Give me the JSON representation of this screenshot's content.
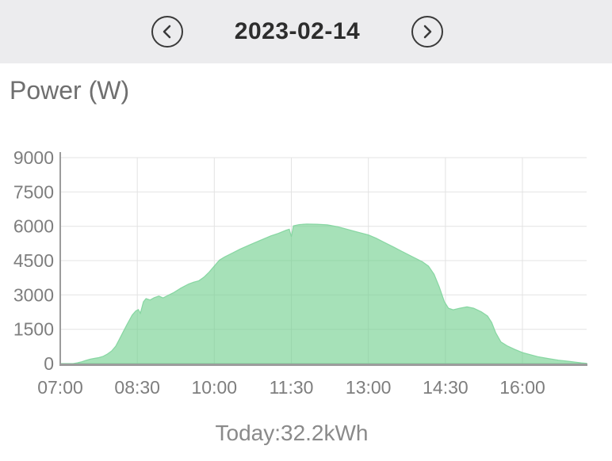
{
  "header": {
    "date": "2023-02-14",
    "prev_icon": "chevron-left",
    "next_icon": "chevron-right"
  },
  "chart": {
    "title": "Power (W)",
    "today_total": "Today:32.2kWh"
  },
  "colors": {
    "header_bg": "#ececee",
    "date_text": "#2d2d2d",
    "title_text": "#6f6f6f",
    "axis_label": "#7e7e7e",
    "grid_line": "#e3e3e3",
    "axis_line": "#9c9c9c",
    "area_fill": "#6fcf8c",
    "area_stroke": "#7fd49c",
    "today_text": "#8a8a8a",
    "icon_stroke": "#3a3a3a"
  },
  "chart_data": {
    "type": "area",
    "title": "Power (W)",
    "x_unit": "hour_of_day",
    "xlim": [
      7.0,
      17.25
    ],
    "ylim": [
      0,
      9000
    ],
    "grid": true,
    "legend": false,
    "total_label": "Today:32.2kWh",
    "total_kwh": 32.2,
    "y_ticks": [
      {
        "value": 0,
        "label": "0"
      },
      {
        "value": 1500,
        "label": "1500"
      },
      {
        "value": 3000,
        "label": "3000"
      },
      {
        "value": 4500,
        "label": "4500"
      },
      {
        "value": 6000,
        "label": "6000"
      },
      {
        "value": 7500,
        "label": "7500"
      },
      {
        "value": 9000,
        "label": "9000"
      }
    ],
    "x_ticks": [
      {
        "value": 7.0,
        "label": "07:00"
      },
      {
        "value": 8.5,
        "label": "08:30"
      },
      {
        "value": 10.0,
        "label": "10:00"
      },
      {
        "value": 11.5,
        "label": "11:30"
      },
      {
        "value": 13.0,
        "label": "13:00"
      },
      {
        "value": 14.5,
        "label": "14:30"
      },
      {
        "value": 16.0,
        "label": "16:00"
      }
    ],
    "series": [
      {
        "name": "solar-power-w",
        "points": [
          [
            7.0,
            0
          ],
          [
            7.25,
            0
          ],
          [
            7.33,
            30
          ],
          [
            7.42,
            80
          ],
          [
            7.5,
            140
          ],
          [
            7.58,
            190
          ],
          [
            7.67,
            230
          ],
          [
            7.75,
            260
          ],
          [
            7.83,
            310
          ],
          [
            7.92,
            420
          ],
          [
            8.0,
            550
          ],
          [
            8.08,
            760
          ],
          [
            8.14,
            1010
          ],
          [
            8.22,
            1360
          ],
          [
            8.3,
            1710
          ],
          [
            8.4,
            2120
          ],
          [
            8.47,
            2300
          ],
          [
            8.52,
            2360
          ],
          [
            8.56,
            2200
          ],
          [
            8.62,
            2700
          ],
          [
            8.67,
            2840
          ],
          [
            8.75,
            2780
          ],
          [
            8.83,
            2880
          ],
          [
            8.92,
            2950
          ],
          [
            9.0,
            2870
          ],
          [
            9.08,
            2960
          ],
          [
            9.2,
            3090
          ],
          [
            9.35,
            3300
          ],
          [
            9.5,
            3480
          ],
          [
            9.6,
            3560
          ],
          [
            9.7,
            3620
          ],
          [
            9.8,
            3780
          ],
          [
            9.9,
            4000
          ],
          [
            10.0,
            4260
          ],
          [
            10.1,
            4520
          ],
          [
            10.2,
            4660
          ],
          [
            10.35,
            4830
          ],
          [
            10.5,
            5000
          ],
          [
            10.7,
            5200
          ],
          [
            10.9,
            5390
          ],
          [
            11.1,
            5580
          ],
          [
            11.25,
            5690
          ],
          [
            11.4,
            5830
          ],
          [
            11.46,
            5870
          ],
          [
            11.5,
            5550
          ],
          [
            11.54,
            6020
          ],
          [
            11.65,
            6070
          ],
          [
            11.8,
            6100
          ],
          [
            12.0,
            6090
          ],
          [
            12.2,
            6060
          ],
          [
            12.4,
            5980
          ],
          [
            12.6,
            5860
          ],
          [
            12.8,
            5740
          ],
          [
            13.0,
            5620
          ],
          [
            13.15,
            5480
          ],
          [
            13.3,
            5310
          ],
          [
            13.5,
            5080
          ],
          [
            13.7,
            4850
          ],
          [
            13.9,
            4620
          ],
          [
            14.05,
            4450
          ],
          [
            14.17,
            4260
          ],
          [
            14.28,
            3900
          ],
          [
            14.38,
            3350
          ],
          [
            14.48,
            2700
          ],
          [
            14.56,
            2420
          ],
          [
            14.65,
            2350
          ],
          [
            14.78,
            2420
          ],
          [
            14.92,
            2480
          ],
          [
            15.05,
            2420
          ],
          [
            15.2,
            2260
          ],
          [
            15.32,
            2080
          ],
          [
            15.4,
            1800
          ],
          [
            15.48,
            1350
          ],
          [
            15.58,
            950
          ],
          [
            15.7,
            780
          ],
          [
            15.85,
            620
          ],
          [
            16.0,
            480
          ],
          [
            16.15,
            390
          ],
          [
            16.3,
            300
          ],
          [
            16.5,
            220
          ],
          [
            16.7,
            150
          ],
          [
            16.9,
            100
          ],
          [
            17.05,
            60
          ],
          [
            17.15,
            30
          ],
          [
            17.25,
            10
          ]
        ]
      }
    ]
  }
}
